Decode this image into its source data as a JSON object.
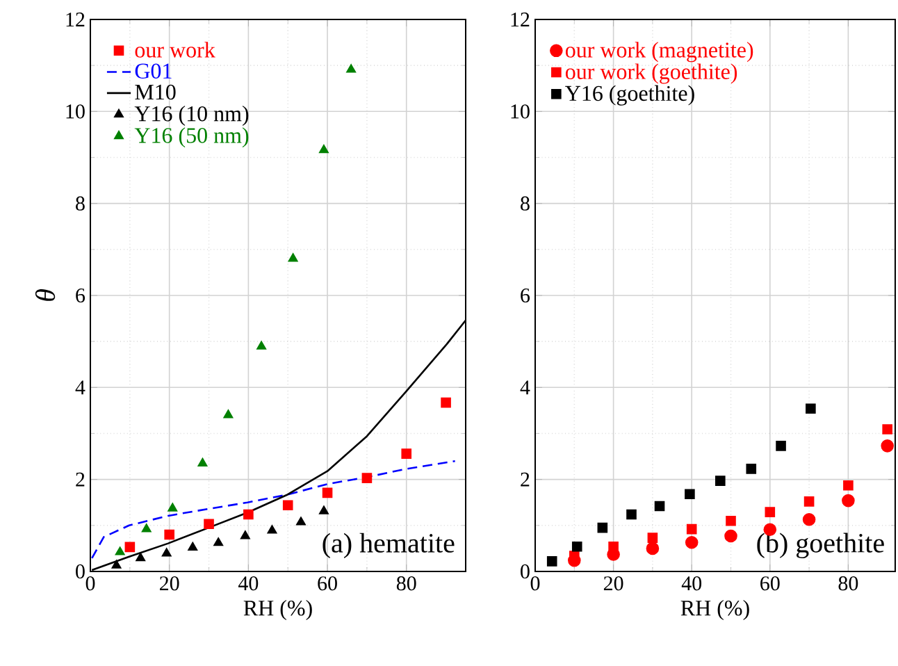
{
  "chart_data": [
    {
      "type": "scatter",
      "xlabel": "RH (%)",
      "ylabel": "θ",
      "xlim": [
        0,
        95
      ],
      "ylim": [
        0,
        12
      ],
      "xticks": [
        0,
        20,
        40,
        60,
        80
      ],
      "yticks": [
        0,
        2,
        4,
        6,
        8,
        10,
        12
      ],
      "grid": true,
      "legend": "top left",
      "annotations": [
        "(a) hematite"
      ],
      "series": [
        {
          "name": "our work",
          "color": "#ff0000",
          "marker": "square",
          "x": [
            10,
            20,
            30,
            40,
            50,
            60,
            70,
            80,
            90
          ],
          "values": [
            0.53,
            0.8,
            1.03,
            1.24,
            1.44,
            1.71,
            2.03,
            2.56,
            3.67
          ]
        },
        {
          "name": "G01",
          "type": "line",
          "color": "#0000ff",
          "marker": "none",
          "line_style": "dashed",
          "x": [
            0.4,
            3.4,
            9.8,
            19.7,
            29.9,
            39.8,
            49.9,
            60,
            70,
            80,
            92.3
          ],
          "values": [
            0.29,
            0.75,
            1.0,
            1.21,
            1.36,
            1.5,
            1.67,
            1.9,
            2.05,
            2.23,
            2.4
          ]
        },
        {
          "name": "M10",
          "type": "line",
          "color": "#000000",
          "marker": "none",
          "line_style": "solid",
          "x": [
            0.4,
            9.8,
            19.7,
            29.9,
            39.8,
            49.9,
            60,
            70,
            80,
            90.2,
            95
          ],
          "values": [
            0.03,
            0.32,
            0.61,
            0.95,
            1.28,
            1.67,
            2.18,
            2.94,
            3.92,
            4.94,
            5.46
          ]
        },
        {
          "name": "Y16 (10 nm)",
          "color": "#000000",
          "marker": "triangle",
          "x": [
            6.6,
            12.7,
            19.3,
            25.9,
            32.4,
            39.2,
            46,
            53.3,
            59.1
          ],
          "values": [
            0.13,
            0.29,
            0.39,
            0.52,
            0.62,
            0.77,
            0.89,
            1.07,
            1.31
          ]
        },
        {
          "name": "Y16 (50 nm)",
          "color": "#008000",
          "marker": "triangle",
          "x": [
            7.5,
            14.2,
            20.8,
            28.4,
            34.9,
            43.3,
            51.3,
            59.1,
            66
          ],
          "values": [
            0.42,
            0.92,
            1.37,
            2.35,
            3.4,
            4.89,
            6.8,
            9.16,
            10.91
          ]
        }
      ]
    },
    {
      "type": "scatter",
      "xlabel": "RH (%)",
      "xlim": [
        0,
        92
      ],
      "ylim": [
        0,
        12
      ],
      "xticks": [
        0,
        20,
        40,
        60,
        80
      ],
      "yticks": [
        0,
        2,
        4,
        6,
        8,
        10,
        12
      ],
      "grid": true,
      "legend": "top left",
      "annotations": [
        "(b) goethite"
      ],
      "series": [
        {
          "name": "our work (magnetite)",
          "color": "#ff0000",
          "marker": "circle",
          "x": [
            10,
            20,
            30,
            40,
            50,
            60,
            70,
            80,
            90
          ],
          "values": [
            0.24,
            0.37,
            0.5,
            0.63,
            0.77,
            0.91,
            1.13,
            1.54,
            2.73
          ]
        },
        {
          "name": "our work (goethite)",
          "color": "#ff0000",
          "marker": "square",
          "x": [
            10,
            20,
            30,
            40,
            50,
            60,
            70,
            80,
            90
          ],
          "values": [
            0.34,
            0.54,
            0.73,
            0.92,
            1.1,
            1.29,
            1.52,
            1.87,
            3.09
          ]
        },
        {
          "name": "Y16 (goethite)",
          "color": "#000000",
          "marker": "square",
          "x": [
            4.3,
            10.7,
            17.2,
            24.6,
            31.8,
            39.5,
            47.3,
            55.2,
            62.8,
            70.4
          ],
          "values": [
            0.22,
            0.54,
            0.95,
            1.24,
            1.42,
            1.68,
            1.97,
            2.23,
            2.73,
            3.54
          ]
        }
      ]
    }
  ]
}
